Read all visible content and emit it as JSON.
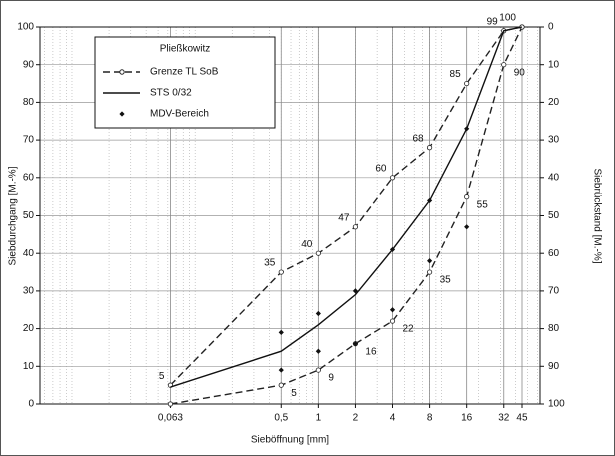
{
  "chart_data": {
    "type": "grading-curve",
    "legend_title": "Pließkowitz",
    "xlabel": "Sieböffnung    [mm]",
    "ylabel": "Siebdurchgang  [M.-%]",
    "y2label": "Siebrückstand  [M.-%]",
    "xscale": "log",
    "xlim": [
      0.0055,
      63
    ],
    "xticks": [
      {
        "value": 0.063,
        "label": "0,063"
      },
      {
        "value": 0.5,
        "label": "0,5"
      },
      1,
      2,
      4,
      8,
      16,
      32,
      45
    ],
    "ylim": [
      0,
      100
    ],
    "yticks": [
      0,
      10,
      20,
      30,
      40,
      50,
      60,
      70,
      80,
      90,
      100
    ],
    "y2lim": [
      100,
      0
    ],
    "y2ticks": [
      0,
      10,
      20,
      30,
      40,
      50,
      60,
      70,
      80,
      90,
      100
    ],
    "grid": true,
    "legend": "upper left",
    "limits": {
      "name": "Grenze TL SoB",
      "color": "#222222",
      "x": [
        0.063,
        0.5,
        1,
        2,
        4,
        8,
        16,
        32,
        45
      ],
      "upper": [
        5,
        35,
        40,
        47,
        60,
        68,
        85,
        99,
        100
      ],
      "upper_labels": [
        "5",
        "35",
        "40",
        "47",
        "60",
        "68",
        "85",
        "99",
        "100"
      ],
      "lower": [
        0,
        5,
        9,
        16,
        22,
        35,
        55,
        90,
        100
      ],
      "lower_labels": [
        null,
        "5",
        "9",
        "16",
        "22",
        "35",
        "55",
        "90",
        null
      ]
    },
    "curve": {
      "name": "STS 0/32",
      "color": "#111111",
      "x": [
        0.063,
        0.5,
        1,
        2,
        4,
        8,
        16,
        32,
        45
      ],
      "values": [
        4.5,
        14,
        21,
        29,
        41,
        54,
        73,
        99,
        100
      ]
    },
    "points": {
      "name": "MDV-Bereich",
      "color": "#111111",
      "x": [
        0.5,
        0.5,
        1,
        1,
        2,
        2,
        4,
        4,
        8,
        8,
        16,
        16
      ],
      "values": [
        19,
        9,
        24,
        14,
        30,
        16,
        41,
        25,
        54,
        38,
        73,
        47
      ]
    }
  }
}
